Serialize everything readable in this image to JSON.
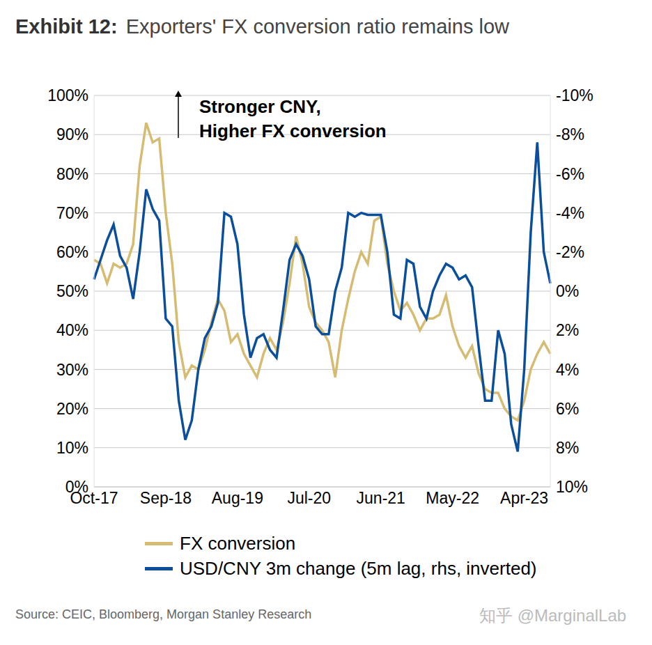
{
  "chart_data": {
    "type": "line",
    "title_label": "Exhibit 12:",
    "title": "Exporters' FX conversion ratio remains low",
    "annotation": [
      "Stronger CNY,",
      "Higher FX conversion"
    ],
    "source": "Source: CEIC, Bloomberg, Morgan Stanley Research",
    "watermark": "知乎 @MarginalLab",
    "categories": [
      "Oct-17",
      null,
      null,
      null,
      null,
      null,
      null,
      null,
      null,
      null,
      null,
      "Sep-18",
      null,
      null,
      null,
      null,
      null,
      null,
      null,
      null,
      null,
      null,
      "Aug-19",
      null,
      null,
      null,
      null,
      null,
      null,
      null,
      null,
      null,
      null,
      "Jul-20",
      null,
      null,
      null,
      null,
      null,
      null,
      null,
      null,
      null,
      null,
      "Jun-21",
      null,
      null,
      null,
      null,
      null,
      null,
      null,
      null,
      null,
      null,
      "May-22",
      null,
      null,
      null,
      null,
      null,
      null,
      null,
      null,
      null,
      null,
      "Apr-23",
      null,
      null,
      null,
      null
    ],
    "ylim": [
      0,
      100
    ],
    "yticks": [
      {
        "value": 0,
        "label": "0%"
      },
      {
        "value": 10,
        "label": "10%"
      },
      {
        "value": 20,
        "label": "20%"
      },
      {
        "value": 30,
        "label": "30%"
      },
      {
        "value": 40,
        "label": "40%"
      },
      {
        "value": 50,
        "label": "50%"
      },
      {
        "value": 60,
        "label": "60%"
      },
      {
        "value": 70,
        "label": "70%"
      },
      {
        "value": 80,
        "label": "80%"
      },
      {
        "value": 90,
        "label": "90%"
      },
      {
        "value": 100,
        "label": "100%"
      }
    ],
    "y2lim": [
      10,
      -10
    ],
    "y2ticks": [
      {
        "value": -10,
        "label": "-10%"
      },
      {
        "value": -8,
        "label": "-8%"
      },
      {
        "value": -6,
        "label": "-6%"
      },
      {
        "value": -4,
        "label": "-4%"
      },
      {
        "value": -2,
        "label": "-2%"
      },
      {
        "value": 0,
        "label": "0%"
      },
      {
        "value": 2,
        "label": "2%"
      },
      {
        "value": 4,
        "label": "4%"
      },
      {
        "value": 6,
        "label": "6%"
      },
      {
        "value": 8,
        "label": "8%"
      },
      {
        "value": 10,
        "label": "10%"
      }
    ],
    "grid": true,
    "series": [
      {
        "name": "FX conversion",
        "color": "#D6BC72",
        "values": [
          58,
          57,
          52,
          57,
          56,
          57,
          62,
          82,
          93,
          88,
          89,
          70,
          57,
          37,
          28,
          31,
          30,
          35,
          42,
          48,
          45,
          37,
          39,
          34,
          31,
          28,
          34,
          38,
          35,
          42,
          52,
          64,
          57,
          46,
          42,
          40,
          37,
          28,
          40,
          48,
          55,
          60,
          57,
          68,
          69,
          57,
          50,
          45,
          47,
          44,
          40,
          43,
          43,
          44,
          49,
          41,
          36,
          33,
          36,
          29,
          25,
          24,
          24,
          20,
          18,
          17,
          22,
          30,
          34,
          37,
          34
        ]
      },
      {
        "name": "USD/CNY 3m change (5m lag, rhs, inverted)",
        "color": "#0B4F9C",
        "axis": "y2",
        "values": [
          -0.6,
          -1.6,
          -2.6,
          -3.4,
          -1.8,
          -1.2,
          0.4,
          -2.0,
          -5.2,
          -4.2,
          -3.6,
          1.4,
          1.8,
          5.6,
          7.6,
          6.6,
          4.0,
          2.4,
          1.8,
          0.6,
          -4.0,
          -3.8,
          -2.4,
          1.2,
          3.4,
          2.4,
          2.2,
          3.0,
          3.4,
          1.0,
          -1.6,
          -2.4,
          -1.8,
          -0.6,
          1.8,
          2.2,
          2.2,
          0,
          -1.2,
          -4.0,
          -3.8,
          -4.0,
          -3.9,
          -3.9,
          -3.9,
          -2.0,
          1.2,
          1.4,
          -1.6,
          -1.4,
          0.8,
          1.4,
          0,
          -0.8,
          -1.4,
          -1.2,
          -0.6,
          -0.8,
          -0.2,
          2.8,
          5.6,
          5.6,
          2.0,
          3.2,
          6.8,
          8.2,
          4.0,
          -3.0,
          -7.6,
          -2.0,
          -0.4
        ]
      }
    ]
  }
}
